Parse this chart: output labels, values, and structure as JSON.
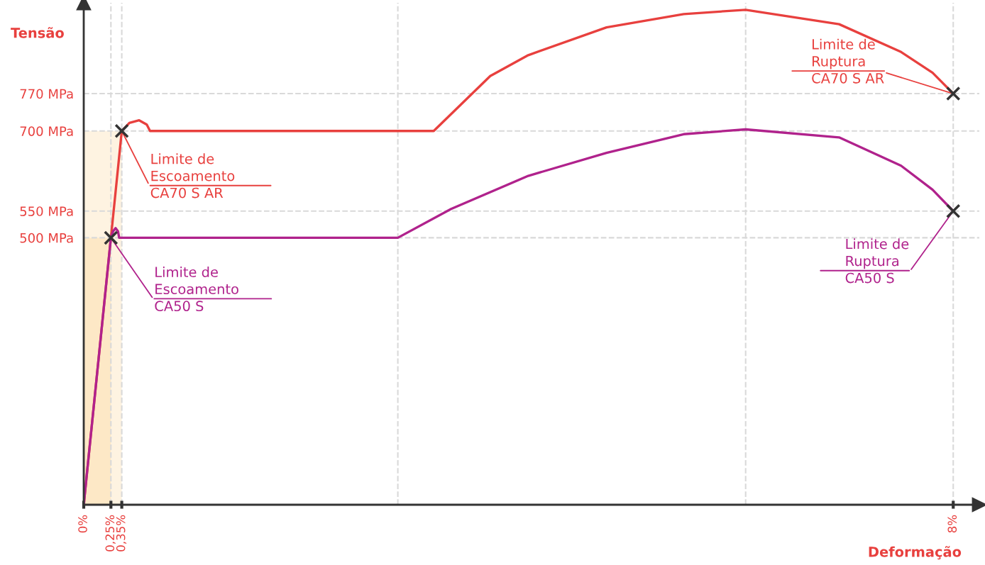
{
  "chart_data": {
    "type": "line",
    "xlabel": "Deformação",
    "ylabel": "Tensão",
    "xlim": [
      0,
      8.24
    ],
    "ylim": [
      0,
      940
    ],
    "xticks": [
      {
        "value": 0,
        "label": "0%"
      },
      {
        "value": 0.25,
        "label": "0,25%"
      },
      {
        "value": 0.35,
        "label": "0,35%"
      },
      {
        "value": 8,
        "label": "8%"
      }
    ],
    "yticks": [
      {
        "value": 500,
        "label": "500 MPa"
      },
      {
        "value": 550,
        "label": "550 MPa"
      },
      {
        "value": 700,
        "label": "700 MPa"
      },
      {
        "value": 770,
        "label": "770 MPa"
      }
    ],
    "grid": true,
    "line_style": "solid",
    "series": [
      {
        "type": "area",
        "color": "#fef3e1",
        "x": [
          0,
          0.35
        ],
        "values": [
          700,
          700
        ]
      },
      {
        "type": "area",
        "color": "#fde8c6",
        "x": [
          0,
          0.25
        ],
        "values": [
          500,
          500
        ]
      },
      {
        "color": "#e8403e",
        "x": [
          0,
          0.35,
          0.42,
          0.51,
          0.58,
          0.61,
          3.22,
          3.74,
          4.09,
          4.81,
          5.52,
          6.09,
          6.95,
          7.52,
          7.81,
          8
        ],
        "values": [
          0,
          700,
          715,
          720,
          712,
          700,
          700,
          803,
          842,
          894,
          919,
          927,
          900,
          848,
          809,
          770
        ]
      },
      {
        "color": "#b0228c",
        "x": [
          0,
          0.25,
          0.27,
          0.293,
          0.315,
          0.326,
          2.89,
          3.38,
          4.09,
          4.81,
          5.52,
          6.09,
          6.95,
          7.52,
          7.81,
          8
        ],
        "values": [
          0,
          500,
          512,
          518,
          512,
          500,
          500,
          554,
          616,
          659,
          694,
          703,
          688,
          635,
          590,
          550
        ]
      },
      {
        "type": "scatter",
        "color": "#333333",
        "marker": "cross",
        "x": [
          0.25,
          0.35,
          8,
          8
        ],
        "values": [
          500,
          700,
          550,
          770
        ]
      }
    ],
    "ref_lines": [
      {
        "axis": "x",
        "value": 2.89,
        "color": "#d9d9d9",
        "line_style": "dashed"
      },
      {
        "axis": "x",
        "value": 6.09,
        "color": "#d9d9d9",
        "line_style": "dashed"
      }
    ],
    "annotations": [
      {
        "text": "Limite de\nEscoamento\nCA70 S AR",
        "x": 0.35,
        "y": 700
      },
      {
        "text": "Limite de\nEscoamento\nCA50 S",
        "x": 0.25,
        "y": 500
      },
      {
        "text": "Limite de\nRuptura\nCA70 S AR",
        "x": 8,
        "y": 770
      },
      {
        "text": "Limite de\nRuptura\nCA50 S",
        "x": 8,
        "y": 550
      }
    ]
  }
}
